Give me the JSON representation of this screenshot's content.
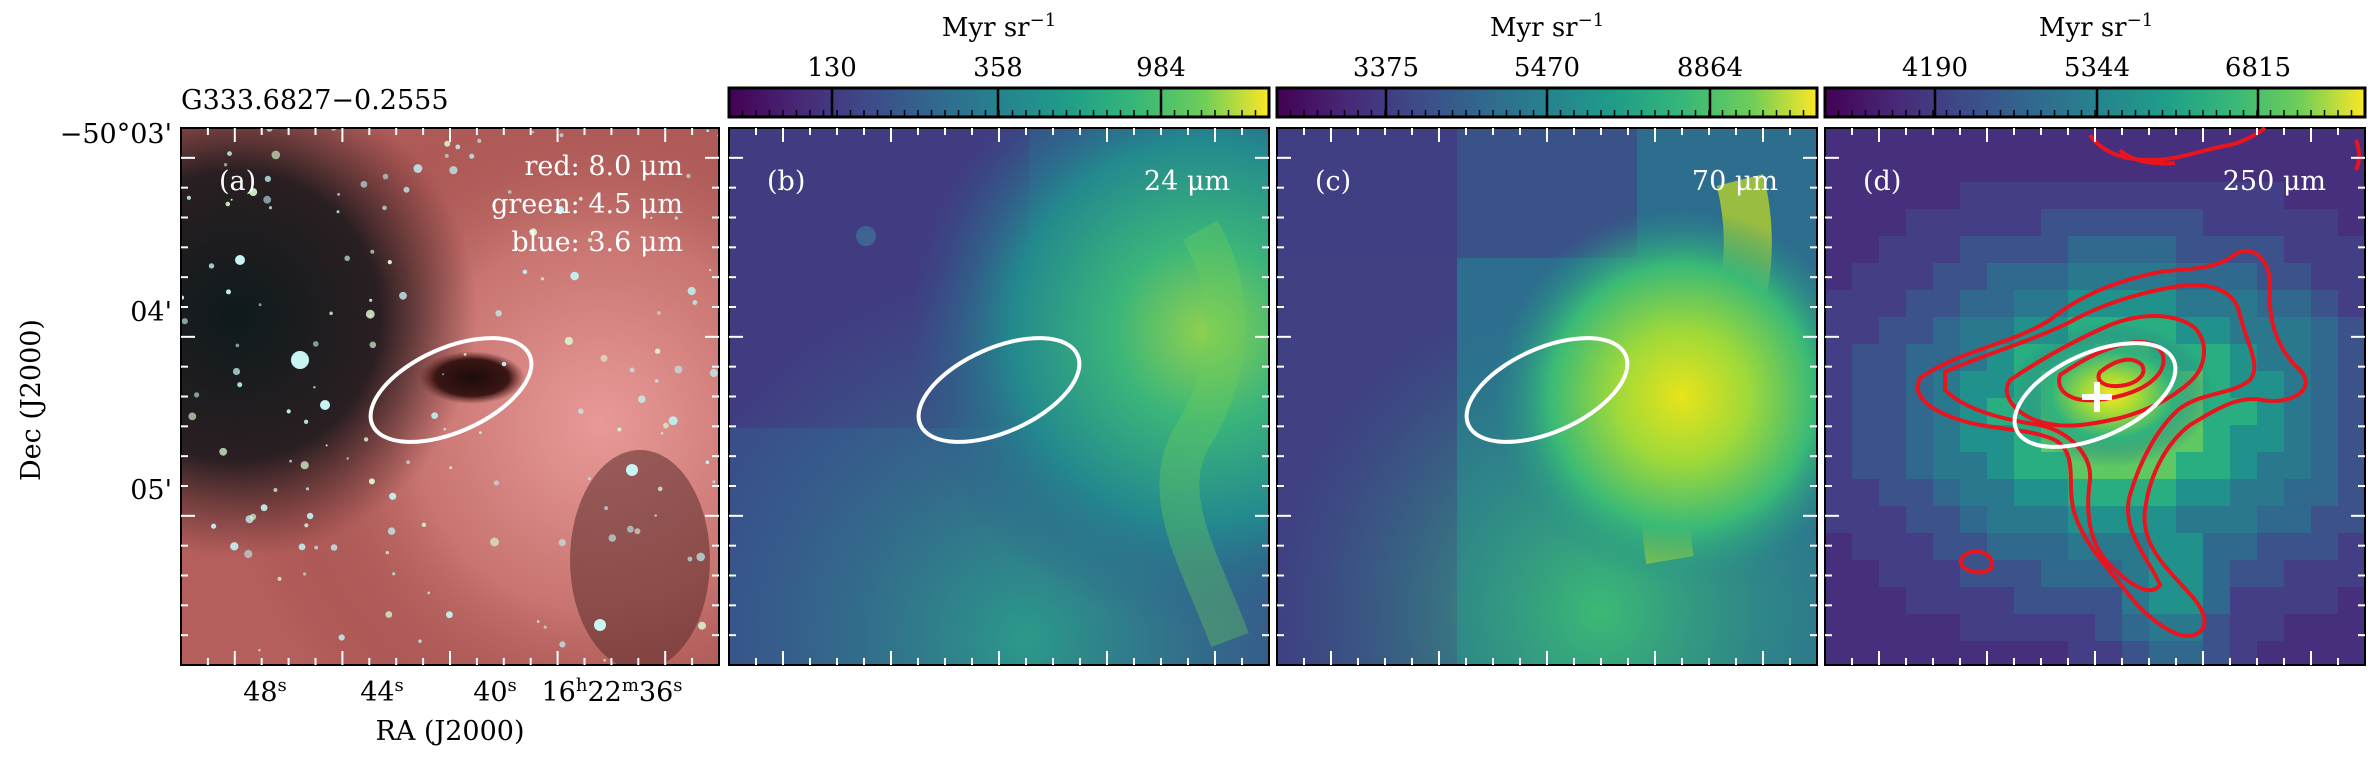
{
  "figure": {
    "source_name": "G333.6827−0.2555",
    "xlabel": "RA (J2000)",
    "ylabel": "Dec (J2000)",
    "dec_ticks": [
      "−50°03'",
      "04'",
      "05'"
    ],
    "ra_ticks": [
      {
        "main": "48",
        "sup": "s"
      },
      {
        "main": "44",
        "sup": "s"
      },
      {
        "main": "40",
        "sup": "s"
      },
      {
        "main": "16",
        "sup": "h",
        "main2": "22",
        "sup2": "m",
        "main3": "36",
        "sup3": "s"
      }
    ],
    "panels": [
      {
        "id": "a",
        "label": "(a)",
        "legend": [
          "red: 8.0 μm",
          "green: 4.5 μm",
          "blue: 3.6 μm"
        ]
      },
      {
        "id": "b",
        "label": "(b)",
        "band": "24 μm",
        "colorbar": {
          "unit_main": "Myr sr",
          "unit_sup": "−1",
          "ticks": [
            "130",
            "358",
            "984"
          ]
        }
      },
      {
        "id": "c",
        "label": "(c)",
        "band": "70 μm",
        "colorbar": {
          "unit_main": "Myr sr",
          "unit_sup": "−1",
          "ticks": [
            "3375",
            "5470",
            "8864"
          ]
        }
      },
      {
        "id": "d",
        "label": "(d)",
        "band": "250 μm",
        "colorbar": {
          "unit_main": "Myr sr",
          "unit_sup": "−1",
          "ticks": [
            "4190",
            "5344",
            "6815"
          ]
        }
      }
    ],
    "colors": {
      "viridis_dark": "#440154",
      "viridis_mid": "#21918c",
      "viridis_light": "#fde725",
      "ellipse": "#ffffff",
      "contour": "#e8141e",
      "marker": "#ffffff"
    }
  }
}
